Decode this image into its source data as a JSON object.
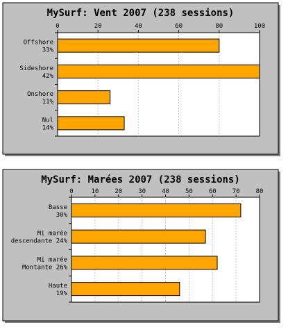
{
  "chart_data": [
    {
      "type": "bar",
      "orientation": "horizontal",
      "title": "MySurf: Vent 2007 (238 sessions)",
      "categories": [
        [
          "Offshore",
          "33%"
        ],
        [
          "Sideshore",
          "42%"
        ],
        [
          "Onshore",
          "11%"
        ],
        [
          "Nul",
          "14%"
        ]
      ],
      "values": [
        80,
        100,
        26,
        33
      ],
      "xlim": [
        0,
        100
      ],
      "ticks": [
        "0",
        "20",
        "40",
        "60",
        "80",
        "100"
      ],
      "tick_values": [
        0,
        20,
        40,
        60,
        80,
        100
      ],
      "grid": true,
      "colors": {
        "bar": "#ffa500",
        "frame": "#c0c0c0",
        "grid": "#c8c8c8"
      }
    },
    {
      "type": "bar",
      "orientation": "horizontal",
      "title": "MySurf: Marées 2007 (238 sessions)",
      "categories": [
        [
          "Basse",
          "30%"
        ],
        [
          "Mi marée",
          "descendante 24%"
        ],
        [
          "Mi marée",
          "Montante 26%"
        ],
        [
          "Haute",
          "19%"
        ]
      ],
      "values": [
        72,
        57,
        62,
        46
      ],
      "xlim": [
        0,
        80
      ],
      "ticks": [
        "0",
        "10",
        "20",
        "30",
        "40",
        "50",
        "60",
        "70",
        "80"
      ],
      "tick_values": [
        0,
        10,
        20,
        30,
        40,
        50,
        60,
        70,
        80
      ],
      "grid": true,
      "colors": {
        "bar": "#ffa500",
        "frame": "#c0c0c0",
        "grid": "#c8c8c8"
      }
    }
  ]
}
